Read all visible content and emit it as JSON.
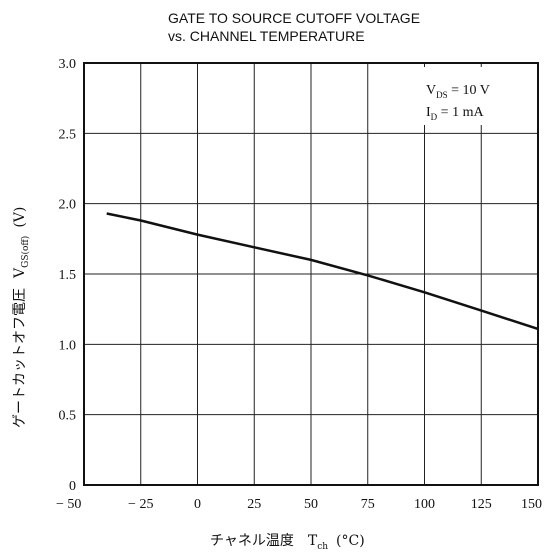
{
  "chart_data": {
    "type": "line",
    "title": "GATE TO SOURCE CUTOFF VOLTAGE",
    "subtitle": "vs. CHANNEL TEMPERATURE",
    "xlabel": {
      "main": "チャネル温度　T",
      "sub": "ch",
      "unit": "(°C)"
    },
    "ylabel": {
      "jp": "ゲートカットオフ電圧",
      "sym": "V",
      "sub": "GS(off)",
      "unit": "(V)"
    },
    "xlim": [
      -50,
      150
    ],
    "ylim": [
      0,
      3.0
    ],
    "xticks": [
      {
        "v": -50,
        "label": "− 50"
      },
      {
        "v": -25,
        "label": "− 25"
      },
      {
        "v": 0,
        "label": "0"
      },
      {
        "v": 25,
        "label": "25"
      },
      {
        "v": 50,
        "label": "50"
      },
      {
        "v": 75,
        "label": "75"
      },
      {
        "v": 100,
        "label": "100"
      },
      {
        "v": 125,
        "label": "125"
      },
      {
        "v": 150,
        "label": "150"
      }
    ],
    "yticks": [
      {
        "v": 0,
        "label": "0"
      },
      {
        "v": 0.5,
        "label": "0.5"
      },
      {
        "v": 1.0,
        "label": "1.0"
      },
      {
        "v": 1.5,
        "label": "1.5"
      },
      {
        "v": 2.0,
        "label": "2.0"
      },
      {
        "v": 2.5,
        "label": "2.5"
      },
      {
        "v": 3.0,
        "label": "3.0"
      }
    ],
    "grid": true,
    "conditions": [
      {
        "sym": "V",
        "sub": "DS",
        "rest": " = 10 V"
      },
      {
        "sym": "I",
        "sub": "D",
        "rest": " = 1 mA"
      }
    ],
    "series": [
      {
        "x": [
          -40,
          -25,
          0,
          25,
          50,
          75,
          100,
          125,
          150
        ],
        "y": [
          1.93,
          1.88,
          1.78,
          1.69,
          1.6,
          1.49,
          1.37,
          1.24,
          1.11
        ]
      }
    ]
  }
}
